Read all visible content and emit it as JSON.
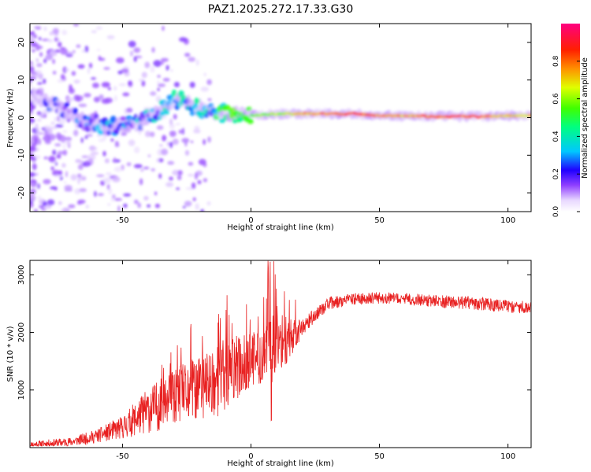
{
  "chart_data": [
    {
      "type": "heatmap",
      "title": "PAZ1.2025.272.17.33.G30",
      "xlabel": "Height of straight line (km)",
      "ylabel": "Frequency (Hz)",
      "xlim": [
        -86,
        109
      ],
      "ylim": [
        -25,
        25
      ],
      "xticks": [
        -50,
        0,
        50,
        100
      ],
      "yticks": [
        -20,
        -10,
        0,
        10,
        20
      ],
      "colorbar": {
        "label": "Normalized spectral amplitude",
        "range": [
          0,
          1
        ],
        "ticks": [
          0.0,
          0.2,
          0.4,
          0.6,
          0.8
        ],
        "colormap": "white-violet-blue-cyan-green-yellow-red-magenta"
      },
      "ridge": {
        "x": [
          -86,
          -75,
          -65,
          -55,
          -45,
          -35,
          -30,
          -25,
          -20,
          -15,
          -10,
          0,
          10,
          20,
          30,
          40,
          50,
          60,
          70,
          80,
          90,
          100,
          109
        ],
        "freq": [
          6,
          3,
          -1,
          -2.5,
          -1.5,
          2,
          5,
          4,
          2,
          1.5,
          1,
          0.5,
          1,
          1,
          1,
          1,
          0.5,
          0.5,
          0.3,
          0.3,
          0.3,
          0.5,
          0.5
        ],
        "amplitude": [
          0.1,
          0.15,
          0.2,
          0.25,
          0.25,
          0.3,
          0.35,
          0.35,
          0.3,
          0.35,
          0.45,
          0.55,
          0.6,
          0.7,
          0.8,
          0.85,
          0.8,
          0.75,
          0.8,
          0.85,
          0.8,
          0.7,
          0.7
        ]
      }
    },
    {
      "type": "line",
      "xlabel": "Height of straight line (km)",
      "ylabel": "SNR (10 * v/v)",
      "xlim": [
        -86,
        109
      ],
      "ylim": [
        0,
        3250
      ],
      "xticks": [
        -50,
        0,
        50,
        100
      ],
      "yticks": [
        1000,
        2000,
        3000
      ],
      "color": "#e82020",
      "envelope": {
        "x": [
          -86,
          -70,
          -60,
          -50,
          -45,
          -40,
          -35,
          -30,
          -25,
          -20,
          -15,
          -10,
          -5,
          0,
          5,
          8,
          10,
          15,
          20,
          25,
          30,
          40,
          50,
          60,
          70,
          80,
          90,
          100,
          109
        ],
        "mean": [
          50,
          100,
          200,
          350,
          500,
          650,
          750,
          850,
          950,
          1050,
          1150,
          1250,
          1400,
          1500,
          1600,
          1700,
          1800,
          1900,
          2100,
          2300,
          2500,
          2580,
          2600,
          2580,
          2550,
          2520,
          2500,
          2450,
          2430
        ],
        "spread": [
          60,
          80,
          120,
          200,
          300,
          400,
          450,
          500,
          550,
          600,
          650,
          650,
          550,
          500,
          500,
          600,
          500,
          400,
          150,
          120,
          110,
          100,
          100,
          100,
          110,
          110,
          120,
          110,
          110
        ]
      }
    }
  ]
}
